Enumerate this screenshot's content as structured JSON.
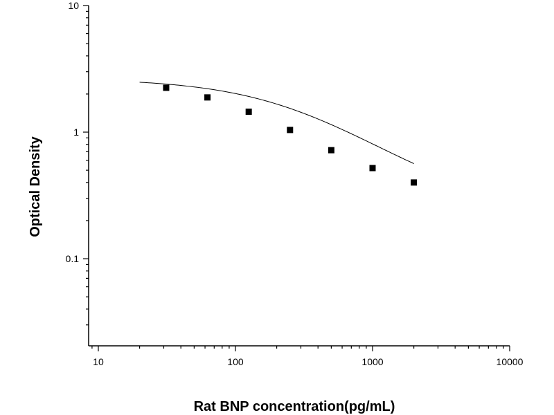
{
  "chart_data": {
    "type": "scatter",
    "xlabel": "Rat BNP concentration(pg/mL)",
    "ylabel": "Optical Density",
    "xscale": "log",
    "yscale": "log",
    "xlim": [
      8.5,
      10000
    ],
    "ylim": [
      0.0205,
      10
    ],
    "grid": false,
    "xticks": [
      {
        "value": 10,
        "label": "10"
      },
      {
        "value": 100,
        "label": "100"
      },
      {
        "value": 1000,
        "label": "1000"
      },
      {
        "value": 10000,
        "label": "10000"
      }
    ],
    "yticks": [
      {
        "value": 0.1,
        "label": "0.1"
      },
      {
        "value": 1,
        "label": "1"
      },
      {
        "value": 10,
        "label": "10"
      }
    ],
    "series": [
      {
        "marker": "square",
        "color": "#000000",
        "x": [
          31.25,
          62.5,
          125,
          250,
          500,
          1000,
          2000
        ],
        "y": [
          2.24,
          1.88,
          1.45,
          1.04,
          0.72,
          0.52,
          0.4
        ]
      }
    ],
    "fit": {
      "model": "4PL",
      "color": "#000000",
      "x_range": [
        20,
        2000
      ],
      "params": {
        "A": 2.65,
        "D": 0.22,
        "C": 300,
        "B": 0.95
      }
    }
  }
}
